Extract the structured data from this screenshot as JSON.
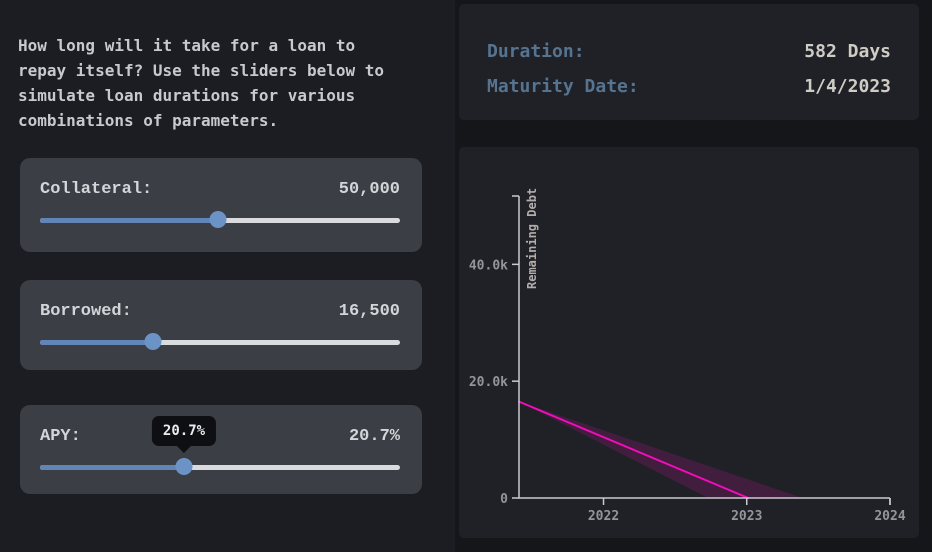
{
  "intro": {
    "text": "How long will it take for a loan to\nrepay itself? Use the sliders below to\nsimulate loan durations for various\ncombinations of parameters."
  },
  "sliders": [
    {
      "label": "Collateral:",
      "value": "50,000",
      "position_pct": 49.4,
      "tooltip": null
    },
    {
      "label": "Borrowed:",
      "value": "16,500",
      "position_pct": 31.4,
      "tooltip": null
    },
    {
      "label": "APY:",
      "value": "20.7%",
      "position_pct": 40.0,
      "tooltip": "20.7%"
    }
  ],
  "results": {
    "rows": [
      {
        "label": "Duration:",
        "value": "582 Days"
      },
      {
        "label": "Maturity Date:",
        "value": "1/4/2023"
      }
    ]
  },
  "colors": {
    "page_bg": "#1b1d22",
    "right_bg": "#14161a",
    "panel_bg": "#1f2127",
    "card_bg": "#3b3e44",
    "slider_fill": "#6285b8",
    "slider_thumb": "#6b93c6",
    "slider_track": "#d9dbde",
    "label_blue": "#56748f",
    "value_cream": "#cfccc6",
    "axis": "#c9cbd0",
    "tick_text": "#92969b",
    "axis_title": "#b2adaa",
    "debt_line": "#f20db8",
    "debt_band": "rgba(242,13,184,0.16)"
  },
  "chart_data": {
    "type": "line",
    "title": "",
    "xlabel": "",
    "ylabel": "Remaining Debt",
    "x_range": [
      2021.41,
      2024
    ],
    "y_range": [
      0,
      51700
    ],
    "grid": false,
    "legend": false,
    "x_ticks": [
      {
        "value": 2022,
        "label": "2022"
      },
      {
        "value": 2023,
        "label": "2023"
      },
      {
        "value": 2024,
        "label": "2024"
      }
    ],
    "y_ticks": [
      {
        "value": 0,
        "label": "0"
      },
      {
        "value": 20000,
        "label": "20.0k"
      },
      {
        "value": 40000,
        "label": "40.0k"
      }
    ],
    "series": [
      {
        "name": "remaining-debt",
        "kind": "line",
        "points": [
          [
            2021.41,
            16500
          ],
          [
            2023.01,
            0
          ]
        ]
      },
      {
        "name": "uncertainty-band",
        "kind": "band",
        "points": [
          [
            2021.41,
            16500
          ],
          [
            2022.73,
            0
          ],
          [
            2023.39,
            0
          ]
        ]
      }
    ]
  }
}
